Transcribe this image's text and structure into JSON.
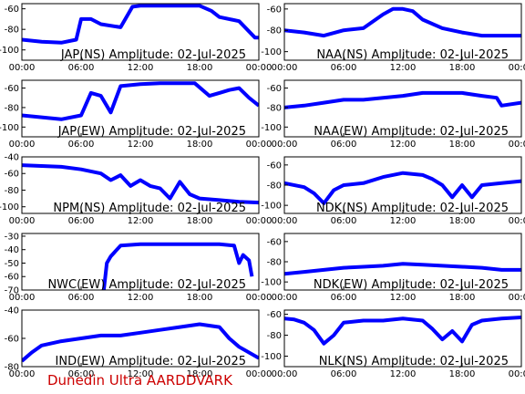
{
  "footer": {
    "text": "Dunedin Ultra AARDDVARK",
    "color": "#cc0000"
  },
  "style": {
    "series_color": "#0000ff",
    "axis_color": "#000000",
    "background": "#ffffff"
  },
  "chart_data": [
    {
      "type": "line",
      "title": "JAP(NS) Amplitude: 02-Jul-2025",
      "ylim": [
        -110,
        -55
      ],
      "yticks": [
        "-100",
        "-80",
        "-60"
      ],
      "ytick_values": [
        -100,
        -80,
        -60
      ],
      "xticks": [
        "00:00",
        "06:00",
        "12:00",
        "18:00",
        "00:00"
      ],
      "xlim": [
        0,
        24
      ],
      "series": [
        {
          "x": [
            0,
            2,
            4,
            5.5,
            6,
            7,
            8,
            10,
            11.2,
            12,
            14,
            16,
            18,
            19.2,
            20,
            22,
            23.6,
            24
          ],
          "y": [
            -90,
            -92,
            -93,
            -90,
            -70,
            -70,
            -75,
            -78,
            -58,
            -57,
            -57,
            -57,
            -57,
            -62,
            -68,
            -72,
            -88,
            -88
          ]
        }
      ]
    },
    {
      "type": "line",
      "title": "NAA(NS) Amplitude: 02-Jul-2025",
      "ylim": [
        -108,
        -55
      ],
      "yticks": [
        "-100",
        "-80",
        "-60"
      ],
      "ytick_values": [
        -100,
        -80,
        -60
      ],
      "xticks": [
        "00:00",
        "06:00",
        "12:00",
        "18:00",
        "00:00"
      ],
      "xlim": [
        0,
        24
      ],
      "series": [
        {
          "x": [
            0,
            2,
            4,
            6,
            8,
            10,
            11,
            12,
            13,
            14,
            16,
            18,
            20,
            22,
            24
          ],
          "y": [
            -80,
            -82,
            -85,
            -80,
            -78,
            -65,
            -60,
            -60,
            -62,
            -70,
            -78,
            -82,
            -85,
            -85,
            -85
          ]
        }
      ]
    },
    {
      "type": "line",
      "title": "JAP(EW) Amplitude: 02-Jul-2025",
      "ylim": [
        -110,
        -52
      ],
      "yticks": [
        "-100",
        "-80",
        "-60"
      ],
      "ytick_values": [
        -100,
        -80,
        -60
      ],
      "xticks": [
        "00:00",
        "06:00",
        "12:00",
        "18:00",
        "00:00"
      ],
      "xlim": [
        0,
        24
      ],
      "series": [
        {
          "x": [
            0,
            2,
            4,
            6,
            7,
            8,
            9,
            10,
            12,
            14,
            16,
            17.5,
            19,
            20,
            21,
            22,
            23,
            24
          ],
          "y": [
            -88,
            -90,
            -92,
            -88,
            -65,
            -68,
            -85,
            -58,
            -56,
            -55,
            -55,
            -55,
            -68,
            -65,
            -62,
            -60,
            -70,
            -78
          ]
        }
      ]
    },
    {
      "type": "line",
      "title": "NAA(EW) Amplitude: 02-Jul-2025",
      "ylim": [
        -110,
        -52
      ],
      "yticks": [
        "-100",
        "-80",
        "-60"
      ],
      "ytick_values": [
        -100,
        -80,
        -60
      ],
      "xticks": [
        "00:00",
        "06:00",
        "12:00",
        "18:00",
        "00:00"
      ],
      "xlim": [
        0,
        24
      ],
      "series": [
        {
          "x": [
            0,
            2,
            4,
            6,
            8,
            10,
            12,
            14,
            16,
            18,
            20,
            21.5,
            22,
            24
          ],
          "y": [
            -80,
            -78,
            -75,
            -72,
            -72,
            -70,
            -68,
            -65,
            -65,
            -65,
            -68,
            -70,
            -78,
            -75
          ]
        }
      ]
    },
    {
      "type": "line",
      "title": "NPM(NS) Amplitude: 02-Jul-2025",
      "ylim": [
        -108,
        -40
      ],
      "yticks": [
        "-100",
        "-80",
        "-60",
        "-40"
      ],
      "ytick_values": [
        -100,
        -80,
        -60,
        -40
      ],
      "xticks": [
        "00:00",
        "06:00",
        "12:00",
        "18:00",
        "00:00"
      ],
      "xlim": [
        0,
        24
      ],
      "series": [
        {
          "x": [
            0,
            2,
            4,
            6,
            8,
            9,
            10,
            11,
            12,
            13,
            14,
            15,
            16,
            17,
            18,
            20,
            22,
            24
          ],
          "y": [
            -50,
            -51,
            -52,
            -55,
            -60,
            -68,
            -62,
            -75,
            -68,
            -75,
            -78,
            -90,
            -70,
            -85,
            -90,
            -92,
            -94,
            -95
          ]
        }
      ]
    },
    {
      "type": "line",
      "title": "NDK(NS) Amplitude: 02-Jul-2025",
      "ylim": [
        -108,
        -52
      ],
      "yticks": [
        "-100",
        "-80",
        "-60"
      ],
      "ytick_values": [
        -100,
        -80,
        -60
      ],
      "xticks": [
        "00:00",
        "06:00",
        "12:00",
        "18:00",
        "00:00"
      ],
      "xlim": [
        0,
        24
      ],
      "series": [
        {
          "x": [
            0,
            2,
            3,
            4,
            5,
            6,
            8,
            10,
            12,
            14,
            15,
            16,
            17,
            18,
            19,
            20,
            22,
            24
          ],
          "y": [
            -78,
            -82,
            -88,
            -98,
            -85,
            -80,
            -78,
            -72,
            -68,
            -70,
            -74,
            -80,
            -92,
            -80,
            -92,
            -80,
            -78,
            -76
          ]
        }
      ]
    },
    {
      "type": "line",
      "title": "NWC(EW) Amplitude: 02-Jul-2025",
      "ylim": [
        -70,
        -28
      ],
      "yticks": [
        "-70",
        "-60",
        "-50",
        "-40",
        "-30"
      ],
      "ytick_values": [
        -70,
        -60,
        -50,
        -40,
        -30
      ],
      "xticks": [
        "00:00",
        "06:00",
        "12:00",
        "18:00",
        "00:00"
      ],
      "xlim": [
        0,
        24
      ],
      "series": [
        {
          "x": [
            8.3,
            8.6,
            9,
            10,
            12,
            14,
            16,
            18,
            20,
            21.5,
            22,
            22.4,
            23,
            23.3
          ],
          "y": [
            -70,
            -50,
            -45,
            -37,
            -36,
            -36,
            -36,
            -36,
            -36,
            -37,
            -50,
            -44,
            -48,
            -60
          ]
        }
      ]
    },
    {
      "type": "line",
      "title": "NDK(EW) Amplitude: 02-Jul-2025",
      "ylim": [
        -108,
        -52
      ],
      "yticks": [
        "-100",
        "-80",
        "-60"
      ],
      "ytick_values": [
        -100,
        -80,
        -60
      ],
      "xticks": [
        "00:00",
        "06:00",
        "12:00",
        "18:00",
        "00:00"
      ],
      "xlim": [
        0,
        24
      ],
      "series": [
        {
          "x": [
            0,
            2,
            4,
            6,
            8,
            10,
            12,
            14,
            16,
            18,
            20,
            22,
            24
          ],
          "y": [
            -92,
            -90,
            -88,
            -86,
            -85,
            -84,
            -82,
            -83,
            -84,
            -85,
            -86,
            -88,
            -88
          ]
        }
      ]
    },
    {
      "type": "line",
      "title": "IND(EW) Amplitude: 02-Jul-2025",
      "ylim": [
        -80,
        -40
      ],
      "yticks": [
        "-80",
        "-60",
        "-40"
      ],
      "ytick_values": [
        -80,
        -60,
        -40
      ],
      "xticks": [
        "00:00",
        "06:00",
        "12:00",
        "18:00",
        "00:00"
      ],
      "xlim": [
        0,
        24
      ],
      "series": [
        {
          "x": [
            0,
            1,
            2,
            4,
            6,
            8,
            10,
            12,
            14,
            16,
            18,
            20,
            21,
            22,
            24
          ],
          "y": [
            -76,
            -70,
            -65,
            -62,
            -60,
            -58,
            -58,
            -56,
            -54,
            -52,
            -50,
            -52,
            -60,
            -66,
            -74
          ]
        }
      ]
    },
    {
      "type": "line",
      "title": "NLK(NS) Amplitude: 02-Jul-2025",
      "ylim": [
        -110,
        -56
      ],
      "yticks": [
        "-100",
        "-80",
        "-60"
      ],
      "ytick_values": [
        -100,
        -80,
        -60
      ],
      "xticks": [
        "00:00",
        "06:00",
        "12:00",
        "18:00",
        "00:00"
      ],
      "xlim": [
        0,
        24
      ],
      "series": [
        {
          "x": [
            0,
            1,
            2,
            3,
            4,
            5,
            6,
            8,
            10,
            12,
            14,
            15,
            16,
            17,
            18,
            19,
            20,
            22,
            24
          ],
          "y": [
            -64,
            -65,
            -68,
            -75,
            -88,
            -80,
            -68,
            -66,
            -66,
            -64,
            -66,
            -74,
            -84,
            -76,
            -86,
            -70,
            -66,
            -64,
            -63
          ]
        }
      ]
    }
  ]
}
